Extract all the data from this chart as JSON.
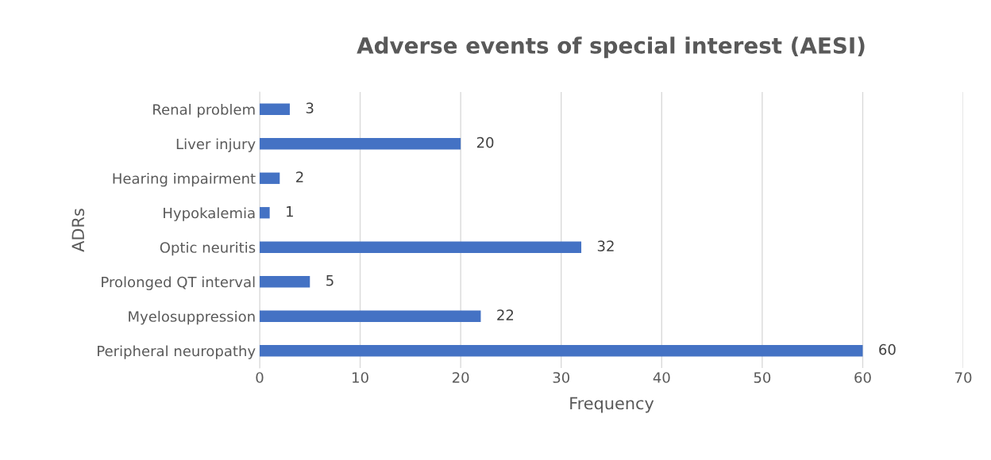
{
  "chart_data": {
    "type": "bar",
    "orientation": "horizontal",
    "title": "Adverse events of special interest (AESI)",
    "xlabel": "Frequency",
    "ylabel": "ADRs",
    "categories": [
      "Renal problem",
      "Liver injury",
      "Hearing impairment",
      "Hypokalemia",
      "Optic neuritis",
      "Prolonged QT interval",
      "Myelosuppression",
      "Peripheral neuropathy"
    ],
    "values": [
      3,
      20,
      2,
      1,
      32,
      5,
      22,
      60
    ],
    "color": "#4472c4",
    "xlim": [
      0,
      70
    ],
    "xticks": [
      0,
      10,
      20,
      30,
      40,
      50,
      60,
      70
    ],
    "grid": "x",
    "data_labels": true,
    "legend": false
  }
}
